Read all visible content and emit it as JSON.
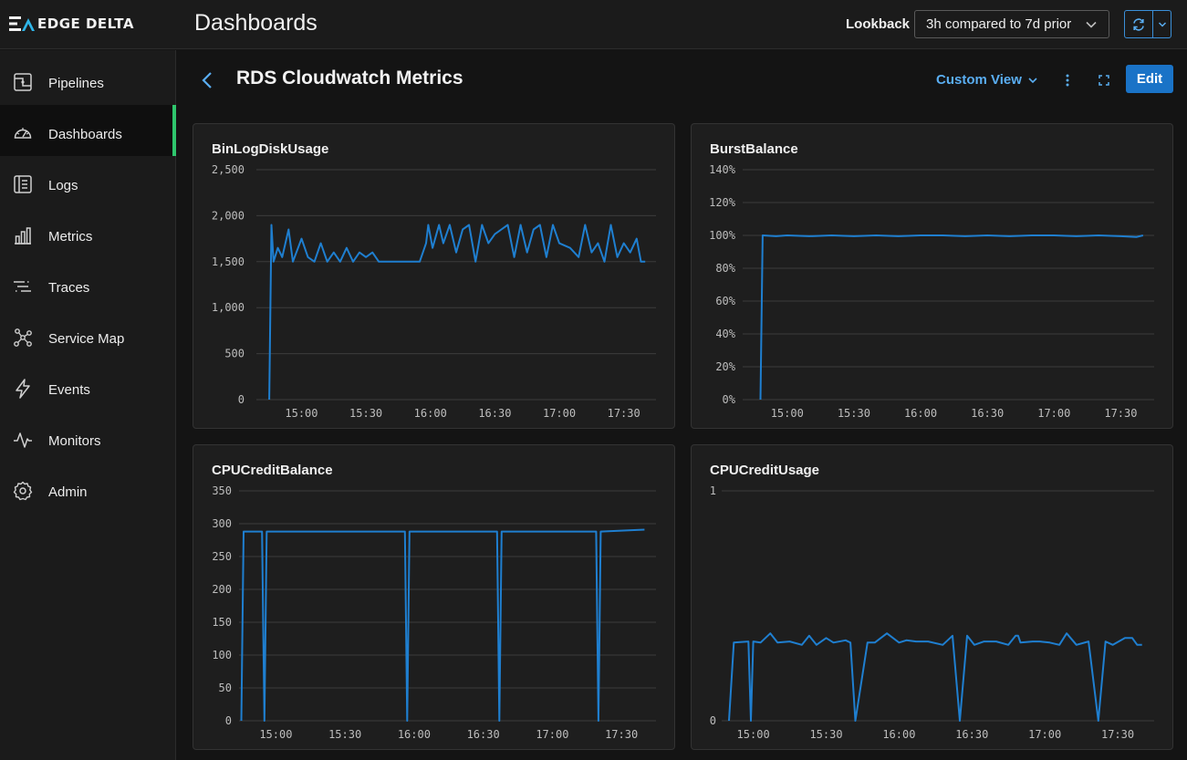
{
  "app": {
    "logo_text": "EDGE DELTA",
    "page_title": "Dashboards"
  },
  "lookback": {
    "label": "Lookback",
    "value": "3h compared to 7d prior"
  },
  "sidebar": {
    "items": [
      {
        "label": "Pipelines",
        "icon": "pipelines-icon",
        "active": false
      },
      {
        "label": "Dashboards",
        "icon": "gauge-icon",
        "active": true
      },
      {
        "label": "Logs",
        "icon": "logs-icon",
        "active": false
      },
      {
        "label": "Metrics",
        "icon": "bar-chart-icon",
        "active": false
      },
      {
        "label": "Traces",
        "icon": "traces-icon",
        "active": false
      },
      {
        "label": "Service Map",
        "icon": "service-map-icon",
        "active": false
      },
      {
        "label": "Events",
        "icon": "lightning-icon",
        "active": false
      },
      {
        "label": "Monitors",
        "icon": "pulse-icon",
        "active": false
      },
      {
        "label": "Admin",
        "icon": "gear-icon",
        "active": false
      }
    ]
  },
  "dashboard": {
    "title": "RDS Cloudwatch Metrics",
    "custom_view_label": "Custom View",
    "edit_label": "Edit"
  },
  "colors": {
    "accent": "#1a73c7",
    "active_indicator": "#2fc66d",
    "series": "#1f7fd0",
    "link": "#5aaef2"
  },
  "chart_data": [
    {
      "type": "line",
      "title": "BinLogDiskUsage",
      "ylim": [
        0,
        2500
      ],
      "yticks": [
        "2,500",
        "2,000",
        "1,500",
        "1,000",
        "500",
        "0"
      ],
      "xticks": [
        "15:00",
        "15:30",
        "16:00",
        "16:30",
        "17:00",
        "17:30"
      ],
      "grid": true,
      "x": [
        "14:45",
        "14:46",
        "14:47",
        "14:49",
        "14:51",
        "14:54",
        "14:56",
        "15:00",
        "15:03",
        "15:06",
        "15:09",
        "15:12",
        "15:15",
        "15:18",
        "15:21",
        "15:24",
        "15:27",
        "15:30",
        "15:33",
        "15:36",
        "15:40",
        "15:45",
        "15:50",
        "15:55",
        "15:58",
        "15:59",
        "16:01",
        "16:04",
        "16:06",
        "16:09",
        "16:12",
        "16:15",
        "16:18",
        "16:21",
        "16:24",
        "16:27",
        "16:30",
        "16:33",
        "16:36",
        "16:39",
        "16:42",
        "16:45",
        "16:48",
        "16:51",
        "16:54",
        "16:57",
        "17:00",
        "17:05",
        "17:09",
        "17:12",
        "17:15",
        "17:18",
        "17:21",
        "17:24",
        "17:27",
        "17:30",
        "17:33",
        "17:36",
        "17:38",
        "17:40"
      ],
      "series": [
        {
          "values": [
            0,
            1900,
            1500,
            1650,
            1550,
            1850,
            1500,
            1750,
            1550,
            1500,
            1700,
            1500,
            1600,
            1500,
            1650,
            1500,
            1600,
            1550,
            1600,
            1500,
            1500,
            1500,
            1500,
            1500,
            1700,
            1900,
            1650,
            1900,
            1700,
            1900,
            1600,
            1850,
            1900,
            1500,
            1900,
            1700,
            1800,
            1850,
            1900,
            1550,
            1900,
            1600,
            1850,
            1900,
            1550,
            1900,
            1700,
            1650,
            1550,
            1900,
            1600,
            1700,
            1500,
            1900,
            1550,
            1700,
            1600,
            1750,
            1500,
            1500
          ]
        }
      ]
    },
    {
      "type": "line",
      "title": "BurstBalance",
      "ylim": [
        0,
        140
      ],
      "yticks": [
        "140%",
        "120%",
        "100%",
        "80%",
        "60%",
        "40%",
        "20%",
        "0%"
      ],
      "xticks": [
        "15:00",
        "15:30",
        "16:00",
        "16:30",
        "17:00",
        "17:30"
      ],
      "grid": true,
      "x": [
        "14:48",
        "14:49",
        "14:55",
        "15:00",
        "15:10",
        "15:20",
        "15:30",
        "15:40",
        "15:50",
        "16:00",
        "16:10",
        "16:20",
        "16:30",
        "16:40",
        "16:50",
        "17:00",
        "17:10",
        "17:20",
        "17:30",
        "17:37",
        "17:40"
      ],
      "series": [
        {
          "values": [
            0,
            100,
            99.5,
            100,
            99.5,
            100,
            99.5,
            100,
            99.5,
            100,
            100,
            99.5,
            100,
            99.5,
            100,
            100,
            99.5,
            100,
            99.5,
            99,
            100
          ]
        }
      ]
    },
    {
      "type": "line",
      "title": "CPUCreditBalance",
      "ylim": [
        0,
        350
      ],
      "yticks": [
        "350",
        "300",
        "250",
        "200",
        "150",
        "100",
        "50",
        "0"
      ],
      "xticks": [
        "15:00",
        "15:30",
        "16:00",
        "16:30",
        "17:00",
        "17:30"
      ],
      "grid": true,
      "x": [
        "14:45",
        "14:46",
        "14:54",
        "14:55",
        "14:56",
        "15:56",
        "15:57",
        "15:58",
        "16:36",
        "16:37",
        "16:38",
        "17:19",
        "17:20",
        "17:21",
        "17:40"
      ],
      "series": [
        {
          "values": [
            0,
            288,
            288,
            0,
            288,
            288,
            0,
            288,
            288,
            0,
            288,
            288,
            0,
            288,
            291
          ]
        }
      ]
    },
    {
      "type": "line",
      "title": "CPUCreditUsage",
      "ylim": [
        0,
        1
      ],
      "yticks": [
        "1",
        "0"
      ],
      "xticks": [
        "15:00",
        "15:30",
        "16:00",
        "16:30",
        "17:00",
        "17:30"
      ],
      "grid": true,
      "x": [
        "14:50",
        "14:52",
        "14:58",
        "14:59",
        "15:00",
        "15:03",
        "15:07",
        "15:10",
        "15:15",
        "15:20",
        "15:23",
        "15:26",
        "15:30",
        "15:33",
        "15:38",
        "15:40",
        "15:42",
        "15:47",
        "15:50",
        "15:55",
        "16:00",
        "16:03",
        "16:07",
        "16:12",
        "16:18",
        "16:22",
        "16:25",
        "16:28",
        "16:31",
        "16:35",
        "16:40",
        "16:45",
        "16:48",
        "16:49",
        "16:50",
        "16:55",
        "16:58",
        "17:02",
        "17:06",
        "17:09",
        "17:13",
        "17:18",
        "17:22",
        "17:25",
        "17:28",
        "17:33",
        "17:36",
        "17:38",
        "17:40"
      ],
      "series": [
        {
          "values": [
            0,
            0.34,
            0.345,
            0,
            0.345,
            0.34,
            0.38,
            0.34,
            0.345,
            0.33,
            0.37,
            0.33,
            0.36,
            0.34,
            0.35,
            0.34,
            0,
            0.34,
            0.34,
            0.38,
            0.34,
            0.35,
            0.345,
            0.345,
            0.33,
            0.37,
            0,
            0.37,
            0.33,
            0.345,
            0.345,
            0.33,
            0.37,
            0.37,
            0.34,
            0.345,
            0.345,
            0.34,
            0.33,
            0.38,
            0.33,
            0.345,
            0,
            0.345,
            0.33,
            0.36,
            0.36,
            0.33,
            0.33
          ]
        }
      ]
    }
  ]
}
